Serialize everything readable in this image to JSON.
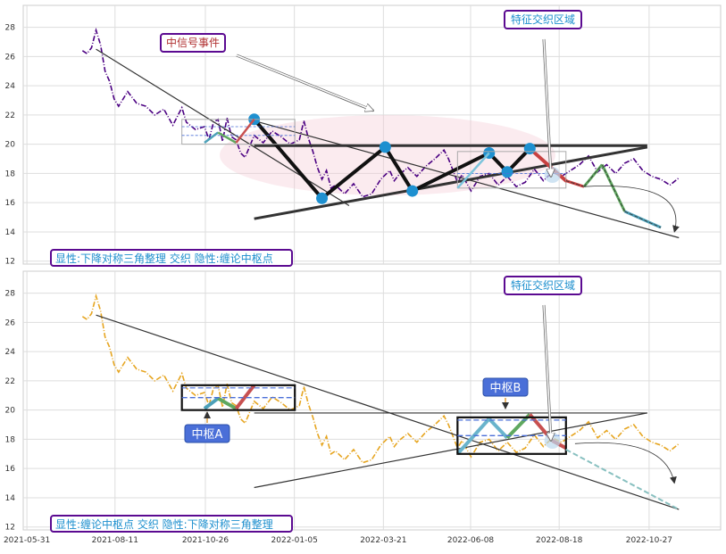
{
  "chart_data": [
    {
      "type": "line",
      "panel": "top",
      "y_ticks": [
        "12",
        "14",
        "16",
        "18",
        "20",
        "22",
        "24",
        "26",
        "28"
      ],
      "ylim": [
        11.8,
        29.5
      ],
      "grid": true,
      "colors": {
        "price": "#4b0082",
        "triangle": "#333333",
        "zigzag": "#111111",
        "node": "#1e90d0",
        "box_stroke": "#999999",
        "callout_border": "#5b0a91"
      },
      "price_series": {
        "name": "",
        "values": [
          [
            6,
            26.4
          ],
          [
            7,
            26.2
          ],
          [
            8,
            26.6
          ],
          [
            9,
            27.8
          ],
          [
            10,
            26.8
          ],
          [
            11,
            25.0
          ],
          [
            12,
            24.3
          ],
          [
            13,
            23.1
          ],
          [
            14,
            22.6
          ],
          [
            16,
            23.6
          ],
          [
            18,
            22.8
          ],
          [
            20,
            22.6
          ],
          [
            22,
            22.0
          ],
          [
            24,
            22.4
          ],
          [
            26,
            21.3
          ],
          [
            28,
            22.5
          ],
          [
            29,
            21.5
          ],
          [
            31,
            21.0
          ],
          [
            33,
            21.2
          ],
          [
            34,
            20.3
          ],
          [
            35,
            21.5
          ],
          [
            36,
            21.7
          ],
          [
            37,
            20.2
          ],
          [
            38,
            21.8
          ],
          [
            39,
            20.5
          ],
          [
            40,
            20.3
          ],
          [
            41,
            19.4
          ],
          [
            42,
            19.1
          ],
          [
            44,
            20.6
          ],
          [
            46,
            20.1
          ],
          [
            48,
            20.9
          ],
          [
            50,
            20.5
          ],
          [
            52,
            20.0
          ],
          [
            54,
            20.3
          ],
          [
            55,
            21.6
          ],
          [
            56,
            20.4
          ],
          [
            57,
            19.5
          ],
          [
            58,
            18.4
          ],
          [
            59,
            17.6
          ],
          [
            60,
            18.2
          ],
          [
            61,
            17.0
          ],
          [
            62,
            17.2
          ],
          [
            64,
            16.6
          ],
          [
            66,
            17.3
          ],
          [
            68,
            16.4
          ],
          [
            70,
            16.6
          ],
          [
            72,
            17.6
          ],
          [
            74,
            18.2
          ],
          [
            75,
            17.5
          ],
          [
            76,
            17.9
          ],
          [
            78,
            18.4
          ],
          [
            80,
            17.8
          ],
          [
            82,
            18.5
          ],
          [
            84,
            19.0
          ],
          [
            86,
            19.6
          ],
          [
            87,
            19.0
          ],
          [
            88,
            18.2
          ],
          [
            89,
            17.4
          ],
          [
            90,
            17.9
          ],
          [
            92,
            16.8
          ],
          [
            94,
            17.8
          ],
          [
            96,
            18.0
          ],
          [
            98,
            17.2
          ],
          [
            100,
            17.8
          ],
          [
            102,
            17.1
          ],
          [
            104,
            17.4
          ],
          [
            106,
            18.3
          ],
          [
            108,
            17.5
          ],
          [
            110,
            18.1
          ],
          [
            112,
            17.8
          ],
          [
            114,
            18.2
          ],
          [
            116,
            18.6
          ],
          [
            118,
            19.2
          ],
          [
            120,
            18.1
          ],
          [
            122,
            18.6
          ],
          [
            124,
            18.0
          ],
          [
            126,
            18.7
          ],
          [
            128,
            19.0
          ],
          [
            130,
            18.2
          ],
          [
            132,
            17.8
          ],
          [
            134,
            17.6
          ],
          [
            136,
            17.2
          ],
          [
            138,
            17.7
          ]
        ]
      },
      "triangle_lines": [
        {
          "from": [
            9,
            26.5
          ],
          "to": [
            65,
            15.8
          ]
        },
        {
          "from": [
            44,
            21.6
          ],
          "to": [
            138,
            13.6
          ]
        },
        {
          "from": [
            44,
            19.9
          ],
          "to": [
            131,
            19.9
          ]
        },
        {
          "from": [
            44,
            14.9
          ],
          "to": [
            131,
            19.8
          ]
        }
      ],
      "zigzag_points": [
        [
          44,
          21.7
        ],
        [
          59,
          16.3
        ],
        [
          73,
          19.8
        ],
        [
          79,
          16.8
        ],
        [
          96,
          19.4
        ],
        [
          100,
          18.1
        ],
        [
          105,
          19.7
        ],
        [
          113,
          17.5
        ]
      ],
      "forecast_path": [
        [
          113,
          17.5
        ],
        [
          117,
          17.1
        ],
        [
          121,
          18.6
        ],
        [
          126,
          15.4
        ],
        [
          134,
          14.3
        ]
      ],
      "callouts": [
        {
          "label": "中信号事件",
          "text_color": "#b03030"
        },
        {
          "label": "特征交织区域",
          "text_color": "#1d8fce"
        }
      ],
      "bottom_label": "显性:下降对称三角整理 交织 隐性:缠论中枢点"
    },
    {
      "type": "line",
      "panel": "bottom",
      "x_ticks": [
        "2021-05-31",
        "2021-08-11",
        "2021-10-26",
        "2022-01-05",
        "2022-03-21",
        "2022-06-08",
        "2022-08-18",
        "2022-10-27"
      ],
      "y_ticks": [
        "12",
        "14",
        "16",
        "18",
        "20",
        "22",
        "24",
        "26",
        "28"
      ],
      "ylim": [
        11.8,
        29.5
      ],
      "grid": true,
      "colors": {
        "price": "#e6a520",
        "zigzag_a": "#4ca0b8",
        "zigzag_b": "#5fa85f",
        "zigzag_c": "#c85050",
        "zigzag_d": "#c0a060",
        "box_stroke": "#111111",
        "zhongshu_fill": "#4a6fd8"
      },
      "price_series": {
        "name": "",
        "values": [
          [
            6,
            26.4
          ],
          [
            7,
            26.2
          ],
          [
            8,
            26.6
          ],
          [
            9,
            27.8
          ],
          [
            10,
            26.8
          ],
          [
            11,
            25.0
          ],
          [
            12,
            24.3
          ],
          [
            13,
            23.1
          ],
          [
            14,
            22.6
          ],
          [
            16,
            23.6
          ],
          [
            18,
            22.8
          ],
          [
            20,
            22.6
          ],
          [
            22,
            22.0
          ],
          [
            24,
            22.4
          ],
          [
            26,
            21.3
          ],
          [
            28,
            22.5
          ],
          [
            29,
            21.5
          ],
          [
            31,
            21.0
          ],
          [
            33,
            21.2
          ],
          [
            34,
            20.3
          ],
          [
            35,
            21.5
          ],
          [
            36,
            21.7
          ],
          [
            37,
            20.2
          ],
          [
            38,
            21.8
          ],
          [
            39,
            20.5
          ],
          [
            40,
            20.3
          ],
          [
            41,
            19.4
          ],
          [
            42,
            19.1
          ],
          [
            44,
            20.6
          ],
          [
            46,
            20.1
          ],
          [
            48,
            20.9
          ],
          [
            50,
            20.5
          ],
          [
            52,
            20.0
          ],
          [
            54,
            20.3
          ],
          [
            55,
            21.6
          ],
          [
            56,
            20.4
          ],
          [
            57,
            19.5
          ],
          [
            58,
            18.4
          ],
          [
            59,
            17.6
          ],
          [
            60,
            18.2
          ],
          [
            61,
            17.0
          ],
          [
            62,
            17.2
          ],
          [
            64,
            16.6
          ],
          [
            66,
            17.3
          ],
          [
            68,
            16.4
          ],
          [
            70,
            16.6
          ],
          [
            72,
            17.6
          ],
          [
            74,
            18.2
          ],
          [
            75,
            17.5
          ],
          [
            76,
            17.9
          ],
          [
            78,
            18.4
          ],
          [
            80,
            17.8
          ],
          [
            82,
            18.5
          ],
          [
            84,
            19.0
          ],
          [
            86,
            19.6
          ],
          [
            87,
            19.0
          ],
          [
            88,
            18.2
          ],
          [
            89,
            17.4
          ],
          [
            90,
            17.9
          ],
          [
            92,
            16.8
          ],
          [
            94,
            17.8
          ],
          [
            96,
            18.0
          ],
          [
            98,
            17.2
          ],
          [
            100,
            17.8
          ],
          [
            102,
            17.1
          ],
          [
            104,
            17.4
          ],
          [
            106,
            18.3
          ],
          [
            108,
            17.5
          ],
          [
            110,
            18.1
          ],
          [
            112,
            17.8
          ],
          [
            114,
            18.2
          ],
          [
            116,
            18.6
          ],
          [
            118,
            19.2
          ],
          [
            120,
            18.1
          ],
          [
            122,
            18.6
          ],
          [
            124,
            18.0
          ],
          [
            126,
            18.7
          ],
          [
            128,
            19.0
          ],
          [
            130,
            18.2
          ],
          [
            132,
            17.8
          ],
          [
            134,
            17.6
          ],
          [
            136,
            17.2
          ],
          [
            138,
            17.7
          ]
        ]
      },
      "triangle_lines": [
        {
          "from": [
            9,
            26.5
          ],
          "to": [
            138,
            13.2
          ]
        },
        {
          "from": [
            44,
            14.7
          ],
          "to": [
            131,
            19.8
          ]
        },
        {
          "from": [
            44,
            19.8
          ],
          "to": [
            131,
            19.8
          ]
        }
      ],
      "zhongshu": [
        {
          "label": "中枢A",
          "box": {
            "x0": 28,
            "x1": 53,
            "y0": 20.0,
            "y1": 21.7
          }
        },
        {
          "label": "中枢B",
          "box": {
            "x0": 89,
            "x1": 113,
            "y0": 17.0,
            "y1": 19.5
          }
        }
      ],
      "callouts": [
        {
          "label": "特征交织区域",
          "text_color": "#1d8fce"
        }
      ],
      "bottom_label": "显性:缠论中枢点 交织 隐性:下降对称三角整理"
    }
  ]
}
